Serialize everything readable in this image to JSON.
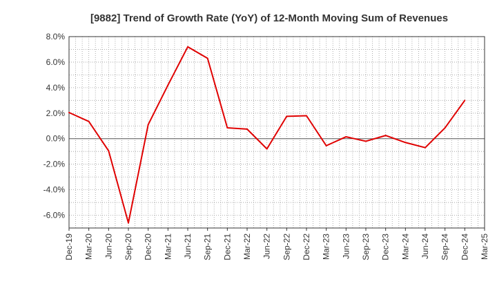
{
  "chart_data": {
    "type": "line",
    "title": "[9882]  Trend of Growth Rate (YoY) of 12-Month Moving Sum of Revenues",
    "xlabel": "",
    "ylabel": "",
    "ylim": [
      -7.0,
      8.0
    ],
    "y_ticks": [
      8.0,
      6.0,
      4.0,
      2.0,
      0.0,
      -2.0,
      -4.0,
      -6.0
    ],
    "y_tick_labels": [
      "8.0%",
      "6.0%",
      "4.0%",
      "2.0%",
      "0.0%",
      "-2.0%",
      "-4.0%",
      "-6.0%"
    ],
    "x_tick_labels": [
      "Dec-19",
      "Mar-20",
      "Jun-20",
      "Sep-20",
      "Dec-20",
      "Mar-21",
      "Jun-21",
      "Sep-21",
      "Dec-21",
      "Mar-22",
      "Jun-22",
      "Sep-22",
      "Dec-22",
      "Mar-23",
      "Jun-23",
      "Sep-23",
      "Dec-23",
      "Mar-24",
      "Jun-24",
      "Sep-24",
      "Dec-24",
      "Mar-25"
    ],
    "grid": true,
    "series": [
      {
        "color": "#e00000",
        "x": [
          "Dec-19",
          "Mar-20",
          "Jun-20",
          "Sep-20",
          "Dec-20",
          "Mar-21",
          "Jun-21",
          "Sep-21",
          "Dec-21",
          "Mar-22",
          "Jun-22",
          "Sep-22",
          "Dec-22",
          "Mar-23",
          "Jun-23",
          "Sep-23",
          "Dec-23",
          "Mar-24",
          "Jun-24",
          "Sep-24",
          "Dec-24"
        ],
        "values": [
          2.05,
          1.35,
          -0.95,
          -6.6,
          1.1,
          4.2,
          7.2,
          6.3,
          0.85,
          0.75,
          -0.8,
          1.75,
          1.8,
          -0.55,
          0.15,
          -0.2,
          0.25,
          -0.3,
          -0.7,
          0.85,
          3.0
        ]
      }
    ]
  }
}
